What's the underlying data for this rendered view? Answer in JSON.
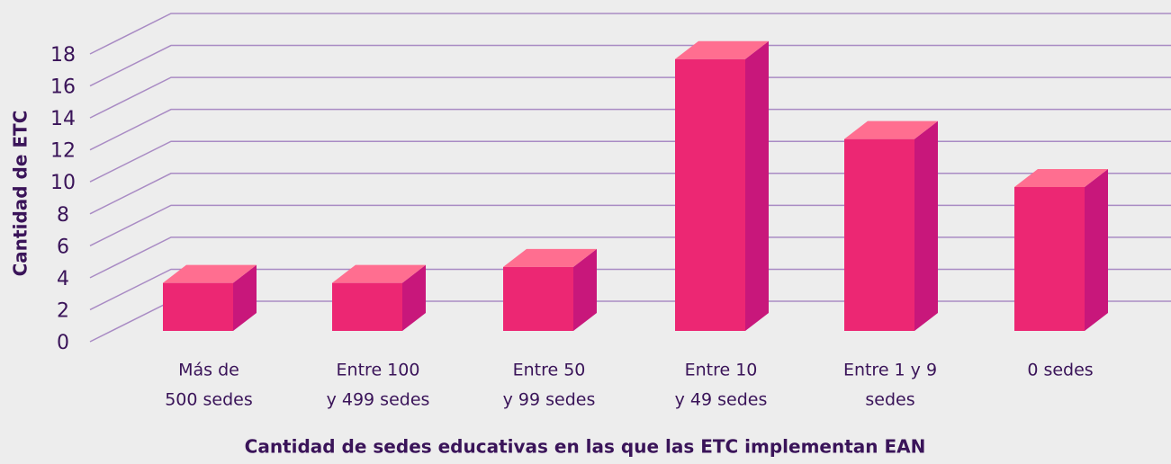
{
  "chart_data": {
    "type": "bar3d",
    "x_label": "Cantidad de sedes educativas en las que las ETC implementan EAN",
    "y_label": "Cantidad de ETC",
    "categories": [
      [
        "Más de",
        "500 sedes"
      ],
      [
        "Entre 100",
        "y 499 sedes"
      ],
      [
        "Entre 50",
        "y 99 sedes"
      ],
      [
        "Entre 10",
        "y 49 sedes"
      ],
      [
        "Entre 1 y 9",
        "sedes"
      ],
      [
        "0 sedes"
      ]
    ],
    "values": [
      3,
      3,
      4,
      17,
      12,
      9
    ],
    "colors": {
      "front": "#ec2773",
      "top": "#ff6e90",
      "side": "#c8177b"
    },
    "ylim": [
      0,
      18
    ],
    "yticks": [
      0,
      2,
      4,
      6,
      8,
      10,
      12,
      14,
      16,
      18
    ],
    "grid": true
  }
}
